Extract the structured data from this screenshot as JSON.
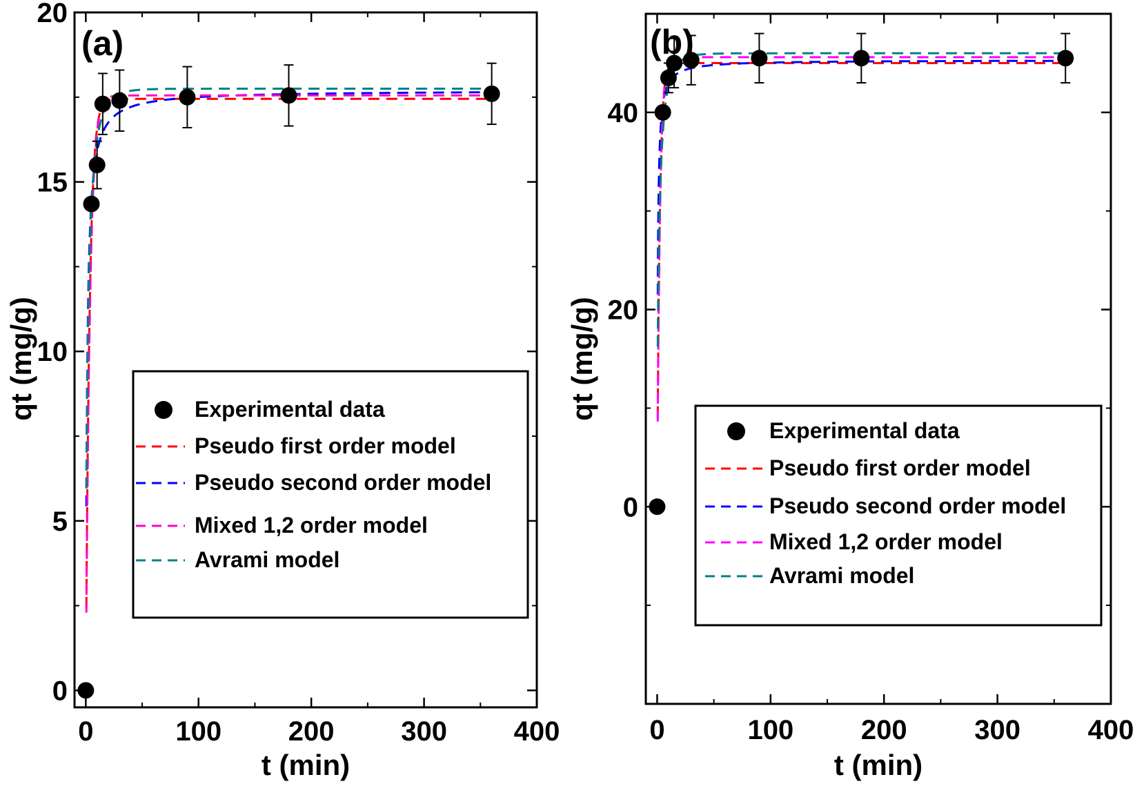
{
  "chart_data": [
    {
      "type": "scatter",
      "panel_label": "(a)",
      "xlabel": "t (min)",
      "ylabel": "qt (mg/g)",
      "xlim": [
        -10,
        400
      ],
      "ylim": [
        -0.5,
        20
      ],
      "xticks": [
        0,
        100,
        200,
        300,
        400
      ],
      "xtick_labels": [
        "0",
        "100",
        "200",
        "300",
        "400"
      ],
      "yticks": [
        0,
        5,
        10,
        15,
        20
      ],
      "ytick_labels": [
        "0",
        "5",
        "10",
        "15",
        "20"
      ],
      "legend_position": "center-right",
      "experimental": {
        "name": "Experimental data",
        "x": [
          0,
          5,
          10,
          15,
          30,
          90,
          180,
          360
        ],
        "y": [
          0,
          14.35,
          15.5,
          17.3,
          17.4,
          17.5,
          17.55,
          17.6
        ],
        "err": [
          0,
          0,
          0.7,
          0.9,
          0.9,
          0.9,
          0.9,
          0.9
        ]
      },
      "models": [
        {
          "name": "Pseudo first order model",
          "color": "#ff0000",
          "kind": "pfo",
          "qe": 17.45,
          "k": 0.3,
          "t0": 0
        },
        {
          "name": "Pseudo second order model",
          "color": "#0000ff",
          "kind": "pso",
          "qe": 17.7,
          "k": 0.05,
          "t0": 0
        },
        {
          "name": "Mixed 1,2 order model",
          "color": "#ff00cc",
          "kind": "pfo",
          "qe": 17.55,
          "k": 0.28,
          "t0": 0
        },
        {
          "name": "Avrami model",
          "color": "#008080",
          "kind": "avrami",
          "qe": 17.75,
          "k": 0.45,
          "n": 0.6
        }
      ]
    },
    {
      "type": "scatter",
      "panel_label": "(b)",
      "xlabel": "t (min)",
      "ylabel": "qt (mg/g)",
      "xlim": [
        -10,
        400
      ],
      "ylim": [
        -20,
        50
      ],
      "xticks": [
        0,
        100,
        200,
        300,
        400
      ],
      "xtick_labels": [
        "0",
        "100",
        "200",
        "300",
        "400"
      ],
      "yticks": [
        0,
        20,
        40
      ],
      "ytick_labels": [
        "0",
        "20",
        "40"
      ],
      "legend_position": "center-right",
      "experimental": {
        "name": "Experimental data",
        "x": [
          0,
          5,
          10,
          15,
          30,
          90,
          180,
          360
        ],
        "y": [
          0,
          40,
          43.5,
          45,
          45.3,
          45.5,
          45.5,
          45.5
        ],
        "err": [
          0,
          0,
          1.5,
          2.5,
          2.5,
          2.5,
          2.5,
          2.5
        ]
      },
      "models": [
        {
          "name": "Pseudo first order model",
          "color": "#ff0000",
          "kind": "pfo",
          "qe": 45.0,
          "k": 0.45,
          "t0": 0
        },
        {
          "name": "Pseudo second order model",
          "color": "#0000ff",
          "kind": "pso",
          "qe": 45.3,
          "k": 0.04,
          "t0": 0
        },
        {
          "name": "Mixed 1,2 order model",
          "color": "#ff00ff",
          "kind": "pfo",
          "qe": 45.6,
          "k": 0.42,
          "t0": 0
        },
        {
          "name": "Avrami model",
          "color": "#008080",
          "kind": "avrami",
          "qe": 46.0,
          "k": 0.5,
          "n": 0.6
        }
      ]
    }
  ]
}
